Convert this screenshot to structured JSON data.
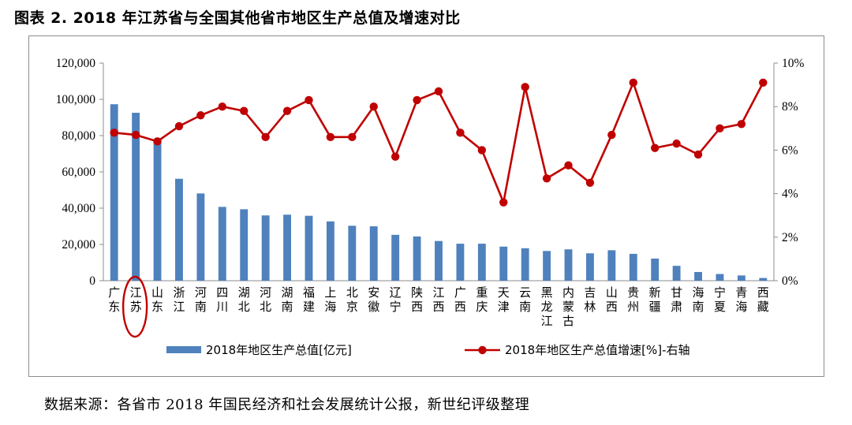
{
  "title": "图表 2. 2018 年江苏省与全国其他省市地区生产总值及增速对比",
  "source": "数据来源：各省市 2018 年国民经济和社会发展统计公报，新世纪评级整理",
  "chart_data": {
    "type": "bar+line",
    "categories": [
      "广东",
      "江苏",
      "山东",
      "浙江",
      "河南",
      "四川",
      "湖北",
      "河北",
      "湖南",
      "福建",
      "上海",
      "北京",
      "安徽",
      "辽宁",
      "陕西",
      "江西",
      "广西",
      "重庆",
      "天津",
      "云南",
      "黑龙江",
      "内蒙古",
      "吉林",
      "山西",
      "贵州",
      "新疆",
      "甘肃",
      "海南",
      "宁夏",
      "青海",
      "西藏"
    ],
    "series": [
      {
        "name": "2018年地区生产总值[亿元]",
        "type": "bar",
        "axis": "left",
        "color": "#4f81bd",
        "values": [
          97300,
          92600,
          76500,
          56200,
          48100,
          40700,
          39400,
          36000,
          36400,
          35800,
          32700,
          30300,
          30000,
          25300,
          24400,
          21900,
          20400,
          20400,
          18800,
          17900,
          16400,
          17300,
          15100,
          16800,
          14800,
          12200,
          8200,
          4800,
          3700,
          2900,
          1500
        ]
      },
      {
        "name": "2018年地区生产总值增速[%]-右轴",
        "type": "line",
        "axis": "right",
        "color": "#c00000",
        "values": [
          6.8,
          6.7,
          6.4,
          7.1,
          7.6,
          8.0,
          7.8,
          6.6,
          7.8,
          8.3,
          6.6,
          6.6,
          8.0,
          5.7,
          8.3,
          8.7,
          6.8,
          6.0,
          3.6,
          8.9,
          4.7,
          5.3,
          4.5,
          6.7,
          9.1,
          6.1,
          6.3,
          5.8,
          7.0,
          7.2,
          9.1
        ]
      }
    ],
    "left_axis": {
      "min": 0,
      "max": 120000,
      "ticks": [
        "0",
        "20,000",
        "40,000",
        "60,000",
        "80,000",
        "100,000",
        "120,000"
      ]
    },
    "right_axis": {
      "min": 0,
      "max": 10,
      "ticks": [
        "0%",
        "2%",
        "4%",
        "6%",
        "8%",
        "10%"
      ]
    },
    "highlight": {
      "category": "江苏",
      "shape": "ellipse",
      "color": "#c00000"
    },
    "legend_position": "bottom",
    "accent_colors": {
      "bar": "#4f81bd",
      "line": "#c00000",
      "axis": "#8c8c8c"
    }
  }
}
